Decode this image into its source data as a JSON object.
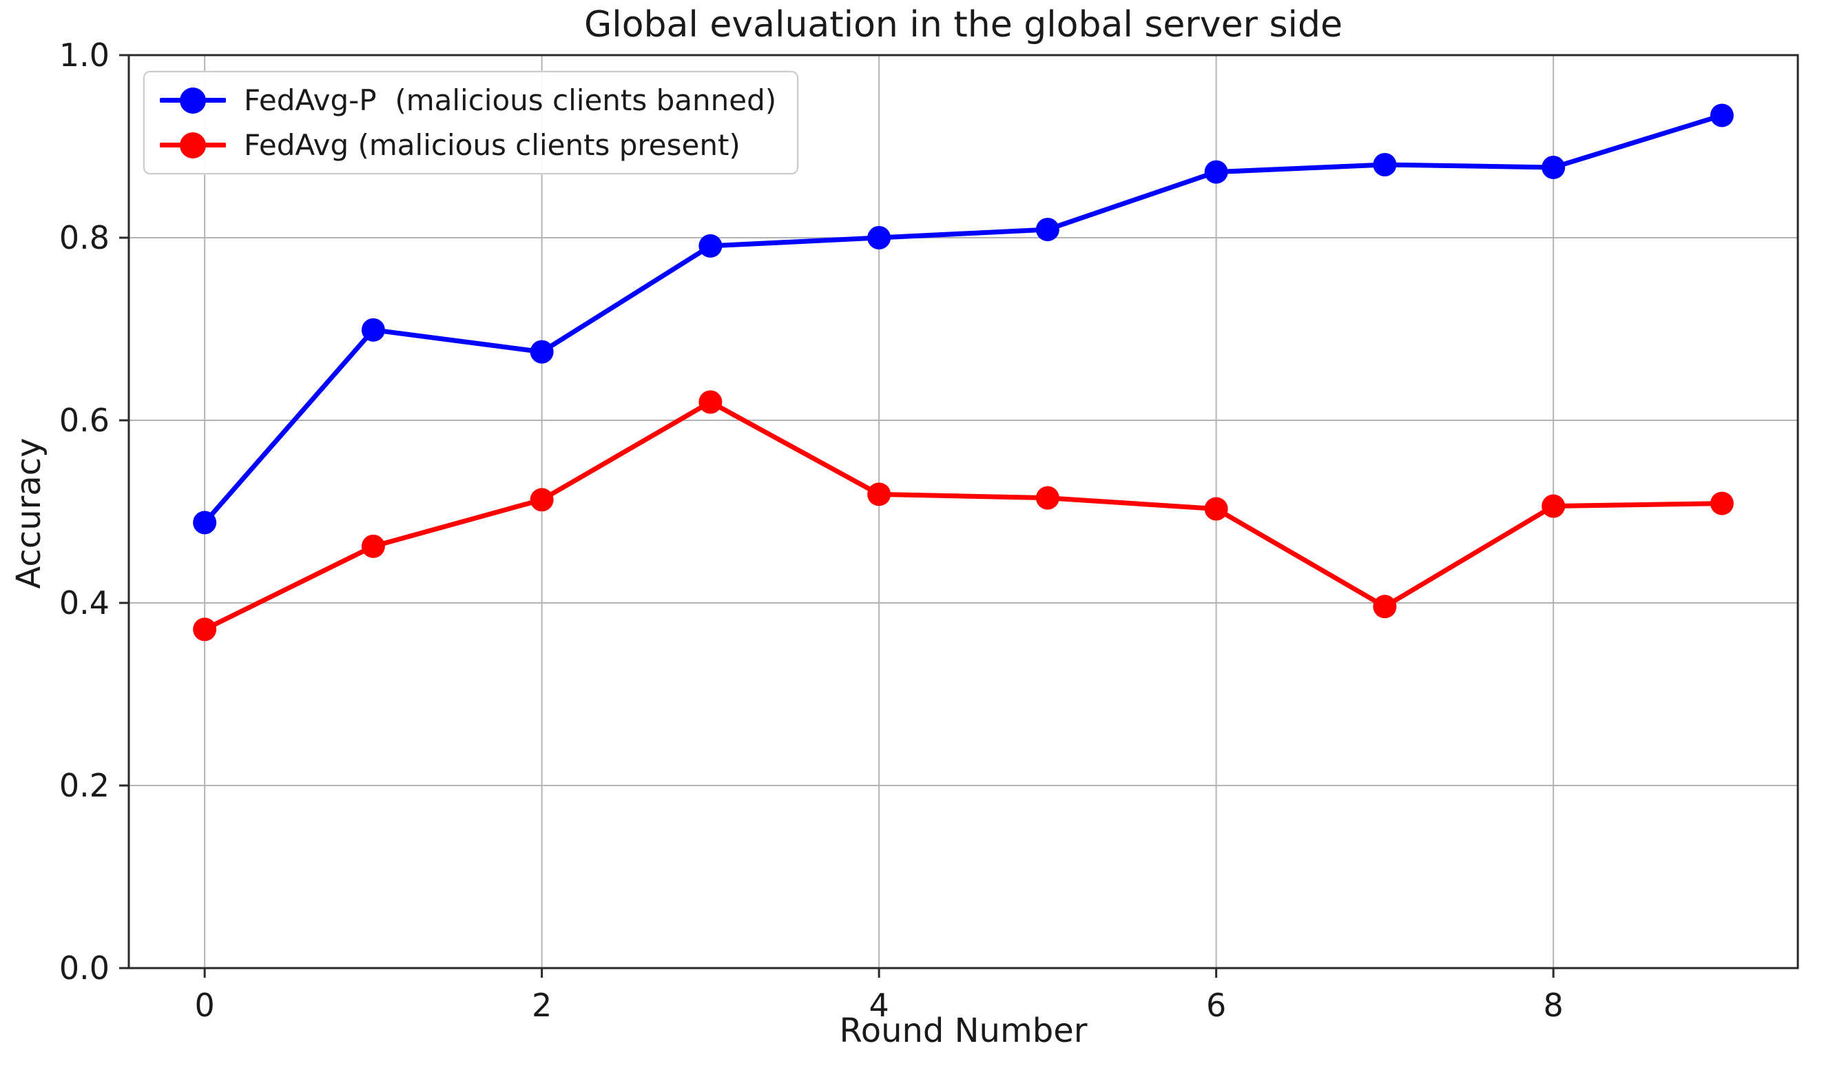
{
  "chart_data": {
    "type": "line",
    "title": "Global evaluation in the global server side",
    "xlabel": "Round Number",
    "ylabel": "Accuracy",
    "x": [
      0,
      1,
      2,
      3,
      4,
      5,
      6,
      7,
      8,
      9
    ],
    "series": [
      {
        "name": "FedAvg-P  (malicious clients banned)",
        "color": "#0000ff",
        "marker": "circle",
        "values": [
          0.488,
          0.699,
          0.675,
          0.791,
          0.8,
          0.809,
          0.872,
          0.88,
          0.877,
          0.934
        ]
      },
      {
        "name": "FedAvg (malicious clients present)",
        "color": "#ff0000",
        "marker": "circle",
        "values": [
          0.371,
          0.462,
          0.513,
          0.62,
          0.519,
          0.515,
          0.503,
          0.396,
          0.506,
          0.509
        ]
      }
    ],
    "xlim": [
      -0.45,
      9.45
    ],
    "ylim": [
      0.0,
      1.0
    ],
    "xticks": [
      0,
      2,
      4,
      6,
      8
    ],
    "xtick_labels": [
      "0",
      "2",
      "4",
      "6",
      "8"
    ],
    "yticks": [
      0.0,
      0.2,
      0.4,
      0.6,
      0.8,
      1.0
    ],
    "ytick_labels": [
      "0.0",
      "0.2",
      "0.4",
      "0.6",
      "0.8",
      "1.0"
    ],
    "grid": true,
    "legend_position": "upper left",
    "grid_color": "#b3b3b3",
    "spine_color": "#2a2a2a",
    "tick_color": "#2a2a2a",
    "text_color": "#1a1a1a",
    "background_color": "#ffffff"
  }
}
